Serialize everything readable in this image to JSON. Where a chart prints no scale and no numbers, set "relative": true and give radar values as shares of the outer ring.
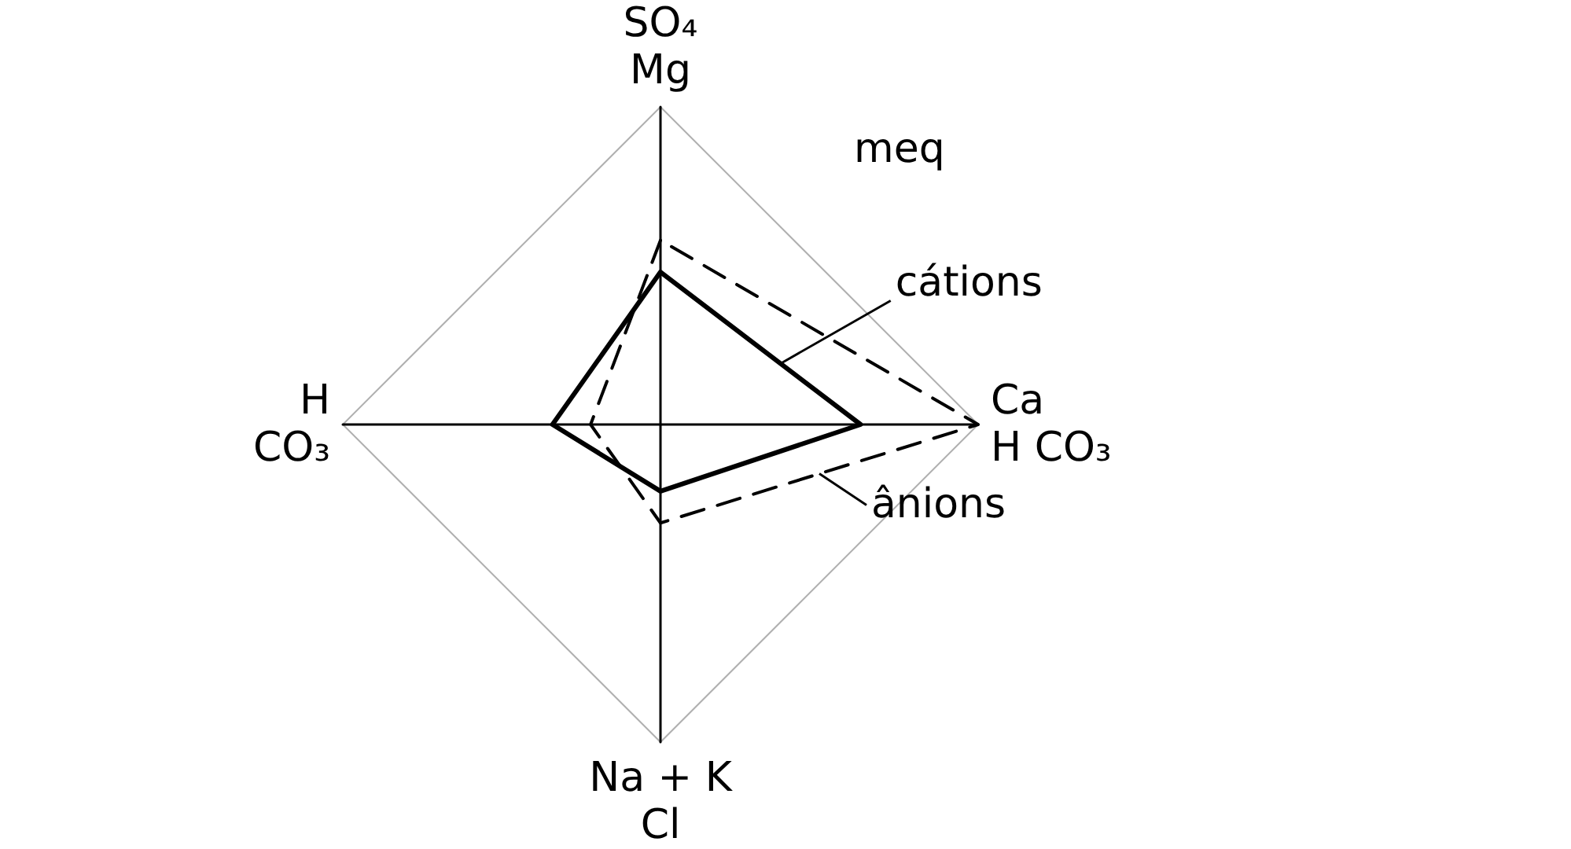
{
  "chart_data": {
    "type": "radar",
    "relative": true,
    "marker": "none",
    "annotations": [
      "meq"
    ],
    "categories": [
      "SO₄\nMg",
      "Ca\nH CO₃",
      "Na + K\nCl",
      "H\nCO₃"
    ],
    "series": [
      {
        "name": "cátions",
        "color": "#000000",
        "line_style": "solid",
        "values": [
          0.48,
          0.63,
          0.21,
          0.34
        ]
      },
      {
        "name": "ânions",
        "color": "#000000",
        "line_style": "dashed",
        "values": [
          0.58,
          1,
          0.31,
          0.22
        ]
      }
    ]
  }
}
